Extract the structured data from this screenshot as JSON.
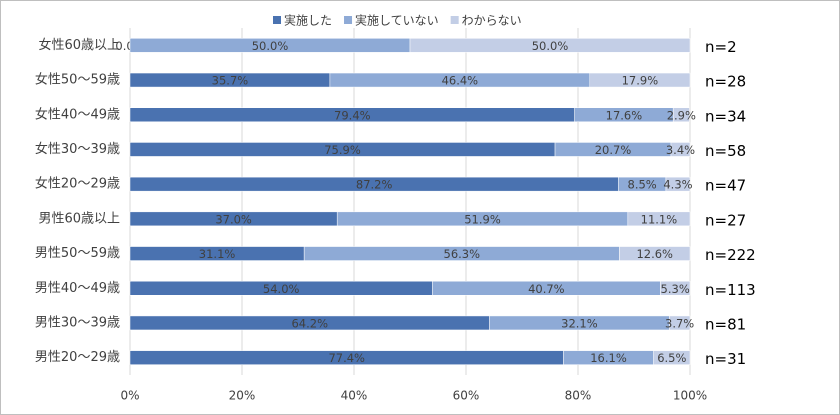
{
  "chart_data": {
    "type": "stacked-bar-horizontal",
    "categories": [
      "女性60歳以上",
      "女性50～59歳",
      "女性40～49歳",
      "女性30～39歳",
      "女性20～29歳",
      "男性60歳以上",
      "男性50～59歳",
      "男性40～49歳",
      "男性30～39歳",
      "男性20～29歳"
    ],
    "annotations": [
      "n=2",
      "n=28",
      "n=34",
      "n=58",
      "n=47",
      "n=27",
      "n=222",
      "n=113",
      "n=81",
      "n=31"
    ],
    "series": [
      {
        "name": "実施した",
        "color": "#4a72b0",
        "values": [
          0.0,
          35.7,
          79.4,
          75.9,
          87.2,
          37.0,
          31.1,
          54.0,
          64.2,
          77.4
        ],
        "value_labels": [
          "0.0%",
          "35.7%",
          "79.4%",
          "75.9%",
          "87.2%",
          "37.0%",
          "31.1%",
          "54.0%",
          "64.2%",
          "77.4%"
        ]
      },
      {
        "name": "実施していない",
        "color": "#8eaad6",
        "values": [
          50.0,
          46.4,
          17.6,
          20.7,
          8.5,
          51.9,
          56.3,
          40.7,
          32.1,
          16.1
        ],
        "value_labels": [
          "50.0%",
          "46.4%",
          "17.6%",
          "20.7%",
          "8.5%",
          "51.9%",
          "56.3%",
          "40.7%",
          "32.1%",
          "16.1%"
        ]
      },
      {
        "name": "わからない",
        "color": "#c3cee6",
        "values": [
          50.0,
          17.9,
          2.9,
          3.4,
          4.3,
          11.1,
          12.6,
          5.3,
          3.7,
          6.5
        ],
        "value_labels": [
          "50.0%",
          "17.9%",
          "2.9%",
          "3.4%",
          "4.3%",
          "11.1%",
          "12.6%",
          "5.3%",
          "3.7%",
          "6.5%"
        ]
      }
    ],
    "xlim": [
      0,
      100
    ],
    "xticks": [
      {
        "value": 0,
        "label": "0%"
      },
      {
        "value": 20,
        "label": "20%"
      },
      {
        "value": 40,
        "label": "40%"
      },
      {
        "value": 60,
        "label": "60%"
      },
      {
        "value": 80,
        "label": "80%"
      },
      {
        "value": 100,
        "label": "100%"
      }
    ],
    "grid": true,
    "legend": "top"
  }
}
